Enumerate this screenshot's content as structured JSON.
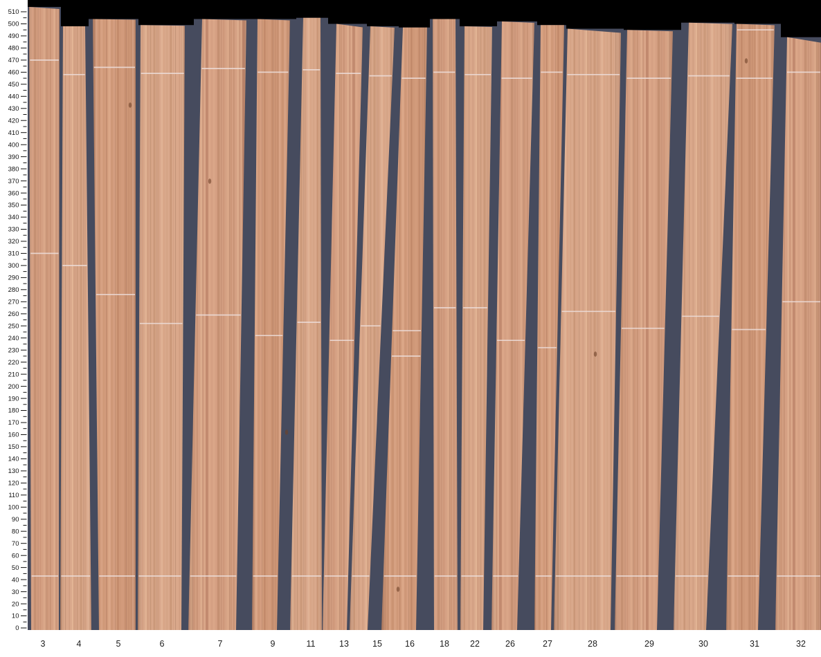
{
  "chart_data": {
    "type": "bar",
    "title": "",
    "xlabel": "",
    "ylabel": "",
    "ylim": [
      0,
      510
    ],
    "y_tick_step": 10,
    "y_minor_tick_step": 5,
    "grid": "off",
    "legend": "none",
    "categories": [
      "3",
      "4",
      "5",
      "6",
      "7",
      "9",
      "11",
      "13",
      "15",
      "16",
      "18",
      "22",
      "26",
      "27",
      "28",
      "29",
      "30",
      "31",
      "32"
    ],
    "values": [
      514,
      498,
      504,
      499,
      504,
      504,
      505,
      500,
      498,
      497,
      504,
      498,
      502,
      499,
      496,
      495,
      501,
      500,
      489
    ],
    "marks": [
      [
        470,
        310,
        43
      ],
      [
        458,
        300,
        43
      ],
      [
        464,
        276,
        43
      ],
      [
        459,
        252,
        43
      ],
      [
        463,
        259,
        43
      ],
      [
        460,
        242,
        43
      ],
      [
        462,
        253,
        43
      ],
      [
        459,
        238,
        43
      ],
      [
        457,
        250,
        43
      ],
      [
        455,
        246,
        225,
        43
      ],
      [
        460,
        265,
        43
      ],
      [
        458,
        265,
        43
      ],
      [
        455,
        238,
        43
      ],
      [
        460,
        232,
        43
      ],
      [
        458,
        262,
        43
      ],
      [
        455,
        248,
        43
      ],
      [
        457,
        258,
        43
      ],
      [
        495,
        455,
        247,
        43
      ],
      [
        460,
        270,
        43
      ]
    ],
    "y_tick_labels": [
      "0",
      "10",
      "20",
      "30",
      "40",
      "50",
      "60",
      "70",
      "80",
      "90",
      "100",
      "110",
      "120",
      "130",
      "140",
      "150",
      "160",
      "170",
      "180",
      "190",
      "200",
      "210",
      "220",
      "230",
      "240",
      "250",
      "260",
      "270",
      "280",
      "290",
      "300",
      "310",
      "320",
      "330",
      "340",
      "350",
      "360",
      "370",
      "380",
      "390",
      "400",
      "410",
      "420",
      "430",
      "440",
      "450",
      "460",
      "470",
      "480",
      "490",
      "500",
      "510"
    ]
  },
  "colors": {
    "page_background": "#ffffff",
    "top_background": "#000000",
    "scan_background": "#464b5e",
    "wood_base": "#d5a083",
    "wood_light": "#e3b593",
    "wood_dark": "#bf8a6d",
    "mark_line": "#eedfdc",
    "axis_text": "#111111",
    "label_text": "#1c1c1c"
  }
}
